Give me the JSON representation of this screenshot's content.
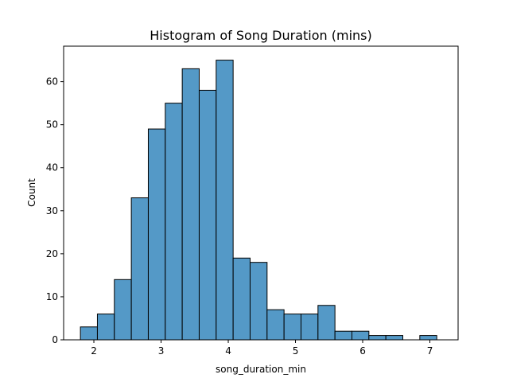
{
  "chart_data": {
    "type": "bar",
    "title": "Histogram of Song Duration (mins)",
    "xlabel": "song_duration_min",
    "ylabel": "Count",
    "xlim": [
      1.55,
      7.42
    ],
    "ylim": [
      0,
      68.25
    ],
    "xticks": [
      2,
      3,
      4,
      5,
      6,
      7
    ],
    "yticks": [
      0,
      10,
      20,
      30,
      40,
      50,
      60
    ],
    "bin_start": 1.8,
    "bin_width": 0.2525,
    "bins": [
      {
        "x0": 1.8,
        "x1": 2.0525,
        "count": 3
      },
      {
        "x0": 2.0525,
        "x1": 2.305,
        "count": 6
      },
      {
        "x0": 2.305,
        "x1": 2.5575,
        "count": 14
      },
      {
        "x0": 2.5575,
        "x1": 2.81,
        "count": 33
      },
      {
        "x0": 2.81,
        "x1": 3.0625,
        "count": 49
      },
      {
        "x0": 3.0625,
        "x1": 3.315,
        "count": 55
      },
      {
        "x0": 3.315,
        "x1": 3.5675,
        "count": 63
      },
      {
        "x0": 3.5675,
        "x1": 3.82,
        "count": 58
      },
      {
        "x0": 3.82,
        "x1": 4.0725,
        "count": 65
      },
      {
        "x0": 4.0725,
        "x1": 4.325,
        "count": 19
      },
      {
        "x0": 4.325,
        "x1": 4.5775,
        "count": 18
      },
      {
        "x0": 4.5775,
        "x1": 4.83,
        "count": 7
      },
      {
        "x0": 4.83,
        "x1": 5.0825,
        "count": 6
      },
      {
        "x0": 5.0825,
        "x1": 5.335,
        "count": 6
      },
      {
        "x0": 5.335,
        "x1": 5.5875,
        "count": 8
      },
      {
        "x0": 5.5875,
        "x1": 5.84,
        "count": 2
      },
      {
        "x0": 5.84,
        "x1": 6.0925,
        "count": 2
      },
      {
        "x0": 6.0925,
        "x1": 6.345,
        "count": 1
      },
      {
        "x0": 6.345,
        "x1": 6.5975,
        "count": 1
      },
      {
        "x0": 6.5975,
        "x1": 6.85,
        "count": 0
      },
      {
        "x0": 6.85,
        "x1": 7.1025,
        "count": 1
      }
    ],
    "bar_color": "#5499c7",
    "edge_color": "#000000",
    "grid": false
  }
}
